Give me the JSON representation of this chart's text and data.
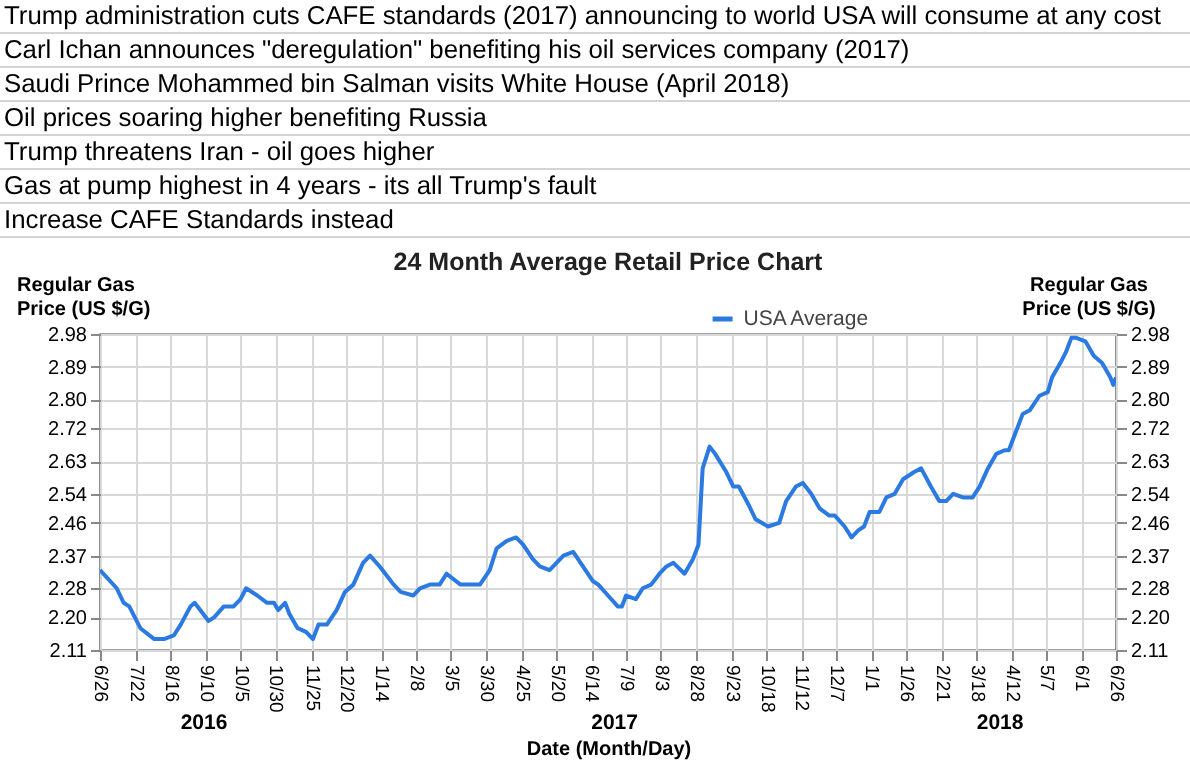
{
  "chart_data": {
    "type": "line",
    "title": "24 Month Average Retail Price Chart",
    "xlabel": "Date (Month/Day)",
    "ylabel": "Regular Gas Price (US $/G)",
    "y2label": "Regular Gas Price (US $/G)",
    "annotations": [
      "Trump administration cuts CAFE standards (2017) announcing to world USA will consume at any cost",
      "Carl Ichan announces \"deregulation\" benefiting his oil services company (2017)",
      "Saudi Prince Mohammed bin Salman visits White House (April 2018)",
      "Oil prices soaring higher benefiting Russia",
      "Trump threatens Iran - oil goes higher",
      "Gas at pump highest in 4 years - its all Trump's fault",
      "Increase CAFE Standards instead"
    ],
    "x2lim": [
      "2016-06-26",
      "2018-06-26"
    ],
    "x2ticks": [
      {
        "value": "2016-09-08",
        "label": "2016"
      },
      {
        "value": "2017-06-30",
        "label": "2017"
      },
      {
        "value": "2018-04-03",
        "label": "2018"
      }
    ],
    "x": [
      "2016-06-26",
      "2016-07-08",
      "2016-07-13",
      "2016-07-17",
      "2016-07-25",
      "2016-08-04",
      "2016-08-11",
      "2016-08-18",
      "2016-08-23",
      "2016-08-30",
      "2016-09-02",
      "2016-09-06",
      "2016-09-12",
      "2016-09-16",
      "2016-09-23",
      "2016-09-30",
      "2016-10-05",
      "2016-10-09",
      "2016-10-17",
      "2016-10-24",
      "2016-10-29",
      "2016-11-01",
      "2016-11-06",
      "2016-11-09",
      "2016-11-15",
      "2016-11-21",
      "2016-11-26",
      "2016-11-30",
      "2016-12-06",
      "2016-12-13",
      "2016-12-19",
      "2016-12-25",
      "2017-01-01",
      "2017-01-06",
      "2017-01-13",
      "2017-01-23",
      "2017-01-28",
      "2017-02-06",
      "2017-02-11",
      "2017-02-18",
      "2017-02-25",
      "2017-03-02",
      "2017-03-12",
      "2017-03-19",
      "2017-03-26",
      "2017-04-02",
      "2017-04-07",
      "2017-04-14",
      "2017-04-21",
      "2017-04-26",
      "2017-05-03",
      "2017-05-08",
      "2017-05-15",
      "2017-05-25",
      "2017-06-01",
      "2017-06-08",
      "2017-06-15",
      "2017-06-19",
      "2017-06-26",
      "2017-07-03",
      "2017-07-06",
      "2017-07-09",
      "2017-07-16",
      "2017-07-21",
      "2017-07-27",
      "2017-08-02",
      "2017-08-07",
      "2017-08-12",
      "2017-08-20",
      "2017-08-26",
      "2017-08-30",
      "2017-09-02",
      "2017-09-07",
      "2017-09-11",
      "2017-09-19",
      "2017-09-24",
      "2017-09-28",
      "2017-10-05",
      "2017-10-10",
      "2017-10-19",
      "2017-10-27",
      "2017-11-01",
      "2017-11-08",
      "2017-11-13",
      "2017-11-19",
      "2017-11-25",
      "2017-12-02",
      "2017-12-06",
      "2017-12-13",
      "2017-12-18",
      "2017-12-23",
      "2017-12-27",
      "2017-12-31",
      "2018-01-07",
      "2018-01-12",
      "2018-01-18",
      "2018-01-24",
      "2018-02-01",
      "2018-02-06",
      "2018-02-13",
      "2018-02-19",
      "2018-02-24",
      "2018-03-01",
      "2018-03-08",
      "2018-03-15",
      "2018-03-20",
      "2018-03-26",
      "2018-04-01",
      "2018-04-07",
      "2018-04-10",
      "2018-04-15",
      "2018-04-20",
      "2018-04-25",
      "2018-05-02",
      "2018-05-08",
      "2018-05-11",
      "2018-05-17",
      "2018-05-21",
      "2018-05-25",
      "2018-05-28",
      "2018-06-04",
      "2018-06-10",
      "2018-06-16",
      "2018-06-22",
      "2018-06-24",
      "2018-06-26"
    ],
    "series": [
      {
        "name": "USA Average",
        "color": "#2a7ae2",
        "values": [
          2.33,
          2.28,
          2.24,
          2.23,
          2.17,
          2.14,
          2.14,
          2.15,
          2.18,
          2.23,
          2.24,
          2.22,
          2.19,
          2.2,
          2.23,
          2.23,
          2.25,
          2.28,
          2.26,
          2.24,
          2.24,
          2.22,
          2.24,
          2.21,
          2.17,
          2.16,
          2.14,
          2.18,
          2.18,
          2.22,
          2.27,
          2.29,
          2.35,
          2.37,
          2.34,
          2.29,
          2.27,
          2.26,
          2.28,
          2.29,
          2.29,
          2.32,
          2.29,
          2.29,
          2.29,
          2.33,
          2.39,
          2.41,
          2.42,
          2.4,
          2.36,
          2.34,
          2.33,
          2.37,
          2.38,
          2.34,
          2.3,
          2.29,
          2.26,
          2.23,
          2.23,
          2.26,
          2.25,
          2.28,
          2.29,
          2.32,
          2.34,
          2.35,
          2.32,
          2.36,
          2.4,
          2.61,
          2.67,
          2.65,
          2.6,
          2.56,
          2.56,
          2.51,
          2.47,
          2.45,
          2.46,
          2.52,
          2.56,
          2.57,
          2.54,
          2.5,
          2.48,
          2.48,
          2.45,
          2.42,
          2.44,
          2.45,
          2.49,
          2.49,
          2.53,
          2.54,
          2.58,
          2.6,
          2.61,
          2.56,
          2.52,
          2.52,
          2.54,
          2.53,
          2.53,
          2.56,
          2.61,
          2.65,
          2.66,
          2.66,
          2.71,
          2.76,
          2.77,
          2.81,
          2.82,
          2.86,
          2.9,
          2.93,
          2.97,
          2.97,
          2.96,
          2.92,
          2.9,
          2.86,
          2.84,
          2.86
        ]
      }
    ],
    "xlim": [
      "2016-06-26",
      "2018-06-26"
    ],
    "xticks": [
      {
        "value": "2016-06-26",
        "label": "6/26"
      },
      {
        "value": "2016-07-22",
        "label": "7/22"
      },
      {
        "value": "2016-08-16",
        "label": "8/16"
      },
      {
        "value": "2016-09-10",
        "label": "9/10"
      },
      {
        "value": "2016-10-05",
        "label": "10/5"
      },
      {
        "value": "2016-10-30",
        "label": "10/30"
      },
      {
        "value": "2016-11-25",
        "label": "11/25"
      },
      {
        "value": "2016-12-20",
        "label": "12/20"
      },
      {
        "value": "2017-01-14",
        "label": "1/14"
      },
      {
        "value": "2017-02-08",
        "label": "2/8"
      },
      {
        "value": "2017-03-05",
        "label": "3/5"
      },
      {
        "value": "2017-03-30",
        "label": "3/30"
      },
      {
        "value": "2017-04-25",
        "label": "4/25"
      },
      {
        "value": "2017-05-20",
        "label": "5/20"
      },
      {
        "value": "2017-06-14",
        "label": "6/14"
      },
      {
        "value": "2017-07-09",
        "label": "7/9"
      },
      {
        "value": "2017-08-03",
        "label": "8/3"
      },
      {
        "value": "2017-08-28",
        "label": "8/28"
      },
      {
        "value": "2017-09-23",
        "label": "9/23"
      },
      {
        "value": "2017-10-18",
        "label": "10/18"
      },
      {
        "value": "2017-11-12",
        "label": "11/12"
      },
      {
        "value": "2017-12-07",
        "label": "12/7"
      },
      {
        "value": "2018-01-01",
        "label": "1/1"
      },
      {
        "value": "2018-01-26",
        "label": "1/26"
      },
      {
        "value": "2018-02-21",
        "label": "2/21"
      },
      {
        "value": "2018-03-18",
        "label": "3/18"
      },
      {
        "value": "2018-04-12",
        "label": "4/12"
      },
      {
        "value": "2018-05-07",
        "label": "5/7"
      },
      {
        "value": "2018-06-01",
        "label": "6/1"
      },
      {
        "value": "2018-06-26",
        "label": "6/26"
      }
    ],
    "ylim": [
      2.11,
      2.98
    ],
    "yticks": [
      2.11,
      {
        "value": 2.2,
        "label": "2.20"
      },
      2.28,
      2.37,
      2.46,
      2.54,
      2.63,
      2.72,
      {
        "value": 2.8,
        "label": "2.80"
      },
      2.89,
      2.98
    ],
    "y2lim": [
      2.11,
      2.98
    ],
    "y2ticks": [
      2.11,
      {
        "value": 2.2,
        "label": "2.20"
      },
      2.28,
      2.37,
      2.46,
      2.54,
      2.63,
      2.72,
      {
        "value": 2.8,
        "label": "2.80"
      },
      2.89,
      2.98
    ],
    "grid": true,
    "legend": "top"
  }
}
